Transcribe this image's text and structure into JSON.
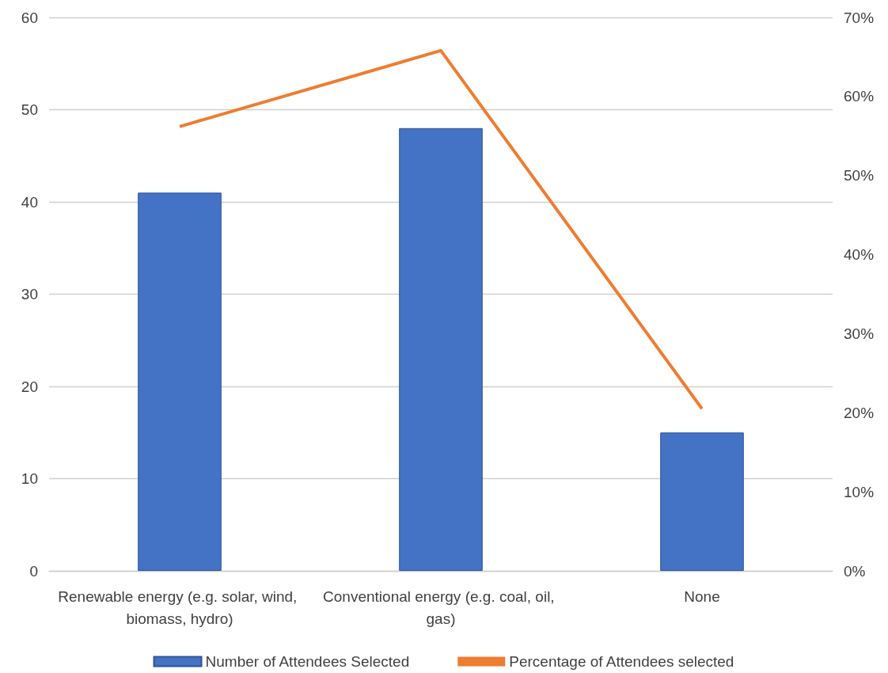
{
  "chart_data": {
    "type": "bar",
    "categories": [
      "Renewable energy (e.g. solar, wind, biomass, hydro)",
      "Conventional energy (e.g. coal, oil, gas)",
      "None"
    ],
    "series": [
      {
        "name": "Number of Attendees Selected",
        "color": "#4472c4",
        "values": [
          41,
          48,
          15
        ]
      },
      {
        "name": "Percentage of Attendees selected",
        "type": "line",
        "axis": "y2",
        "color": "#ed7d31",
        "values": [
          56.2,
          65.8,
          20.5
        ],
        "marker": "none"
      }
    ],
    "ylim": [
      0,
      60
    ],
    "yticks": [
      0,
      10,
      20,
      30,
      40,
      50,
      60
    ],
    "y2lim": [
      0,
      70
    ],
    "y2ticks": [
      {
        "value": 0,
        "label": "0%"
      },
      {
        "value": 10,
        "label": "10%"
      },
      {
        "value": 20,
        "label": "20%"
      },
      {
        "value": 30,
        "label": "30%"
      },
      {
        "value": 40,
        "label": "40%"
      },
      {
        "value": 50,
        "label": "50%"
      },
      {
        "value": 60,
        "label": "60%"
      },
      {
        "value": 70,
        "label": "70%"
      }
    ],
    "grid": "y",
    "legend": "bottom"
  }
}
